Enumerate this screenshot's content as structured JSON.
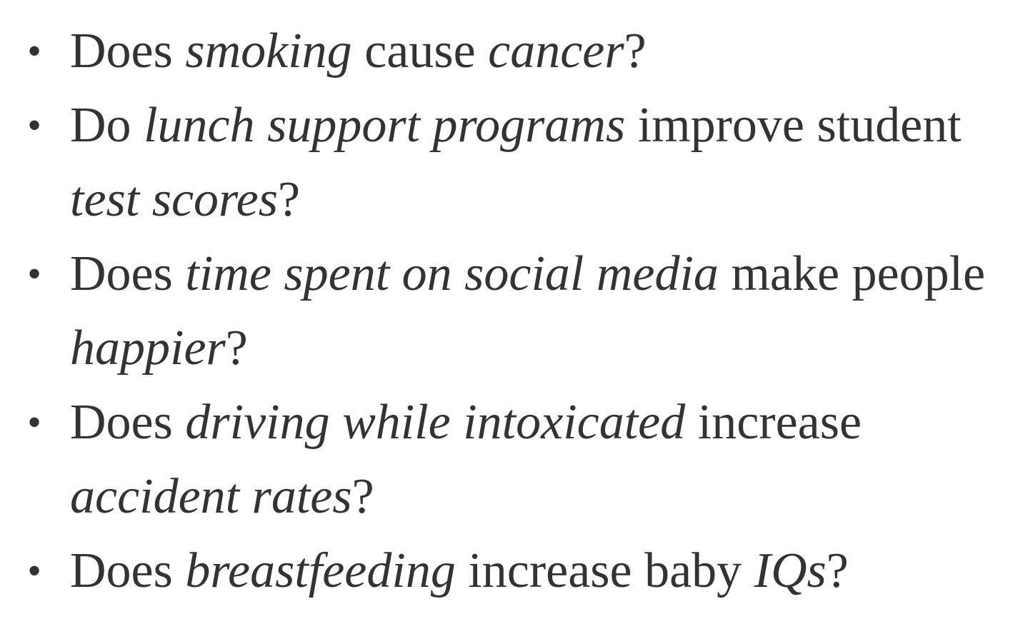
{
  "bullets": [
    {
      "segments": [
        {
          "text": "Does ",
          "italic": false
        },
        {
          "text": "smoking",
          "italic": true
        },
        {
          "text": " cause ",
          "italic": false
        },
        {
          "text": "cancer",
          "italic": true
        },
        {
          "text": "?",
          "italic": false
        }
      ]
    },
    {
      "segments": [
        {
          "text": "Do ",
          "italic": false
        },
        {
          "text": "lunch support programs",
          "italic": true
        },
        {
          "text": " improve student ",
          "italic": false
        },
        {
          "text": "test scores",
          "italic": true
        },
        {
          "text": "?",
          "italic": false
        }
      ]
    },
    {
      "segments": [
        {
          "text": "Does ",
          "italic": false
        },
        {
          "text": "time spent on social media",
          "italic": true
        },
        {
          "text": " make people ",
          "italic": false
        },
        {
          "text": "happier",
          "italic": true
        },
        {
          "text": "?",
          "italic": false
        }
      ]
    },
    {
      "segments": [
        {
          "text": "Does ",
          "italic": false
        },
        {
          "text": "driving while intoxicated",
          "italic": true
        },
        {
          "text": " increase ",
          "italic": false
        },
        {
          "text": "accident rates",
          "italic": true
        },
        {
          "text": "?",
          "italic": false
        }
      ]
    },
    {
      "segments": [
        {
          "text": "Does ",
          "italic": false
        },
        {
          "text": "breastfeeding",
          "italic": true
        },
        {
          "text": " increase baby ",
          "italic": false
        },
        {
          "text": "IQs",
          "italic": true
        },
        {
          "text": "?",
          "italic": false
        }
      ]
    }
  ],
  "bullet_glyph": "•",
  "text_color": "#333333"
}
